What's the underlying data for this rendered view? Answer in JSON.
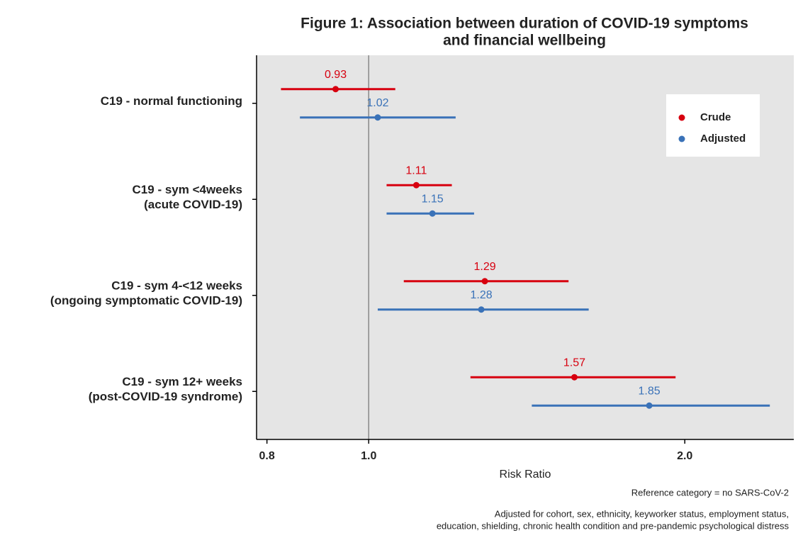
{
  "chart_data": {
    "type": "forest",
    "title": [
      "Figure 1: Association between duration of COVID-19 symptoms",
      "and financial wellbeing"
    ],
    "x_label": "Risk Ratio",
    "notes": [
      "Reference category = no SARS-CoV-2",
      "Adjusted for cohort, sex, ethnicity, keyworker status, employment status,",
      "education, shielding, chronic health condition and pre-pandemic psychological distress"
    ],
    "categories": [
      [
        "C19 - normal functioning"
      ],
      [
        "C19 - sym <4weeks",
        "(acute COVID-19)"
      ],
      [
        "C19 - sym 4-<12 weeks",
        "(ongoing symptomatic COVID-19)"
      ],
      [
        "C19 - sym 12+ weeks",
        "(post-COVID-19 syndrome)"
      ]
    ],
    "series": [
      {
        "name": "Crude",
        "color": "#d7000f",
        "values": [
          0.93,
          1.11,
          1.29,
          1.57
        ],
        "lower": [
          0.825,
          1.04,
          1.08,
          1.25
        ],
        "upper": [
          1.06,
          1.2,
          1.55,
          1.96
        ]
      },
      {
        "name": "Adjusted",
        "color": "#3a72b8",
        "values": [
          1.02,
          1.15,
          1.28,
          1.85
        ],
        "lower": [
          0.86,
          1.04,
          1.02,
          1.43
        ],
        "upper": [
          1.21,
          1.26,
          1.62,
          2.41
        ]
      }
    ],
    "log_x": true,
    "xlim": [
      0.782,
      2.54
    ],
    "xticks": [
      0.8,
      {
        "value": 1,
        "label": "1.0"
      },
      {
        "value": 2,
        "label": "2.0"
      }
    ],
    "ref_line": 1,
    "legend": "top right"
  }
}
